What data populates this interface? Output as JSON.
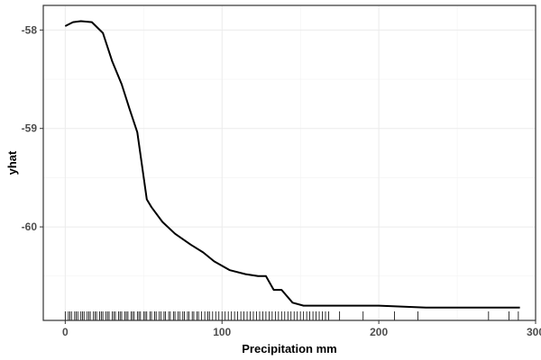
{
  "chart_data": {
    "type": "line",
    "xlabel": "Precipitation mm",
    "ylabel": "yhat",
    "xlim": [
      -14,
      300
    ],
    "ylim": [
      -60.95,
      -57.75
    ],
    "x_ticks": [
      0,
      100,
      200,
      300
    ],
    "x_tick_labels": [
      "0",
      "100",
      "200",
      "300"
    ],
    "y_ticks": [
      -58,
      -59,
      -60
    ],
    "y_tick_labels": [
      "-58",
      "-59",
      "-60"
    ],
    "x_minor_gridlines": [
      50,
      150,
      250
    ],
    "y_minor_gridlines": [
      -58.5,
      -59.5,
      -60.5
    ],
    "grid": true,
    "series": [
      {
        "x": [
          0,
          5,
          10,
          17,
          24,
          30,
          36,
          41,
          46,
          52,
          55,
          62,
          70,
          80,
          88,
          95,
          105,
          115,
          123,
          128,
          133,
          138,
          145,
          152,
          170,
          200,
          230,
          260,
          290
        ],
        "y": [
          -57.96,
          -57.92,
          -57.91,
          -57.92,
          -58.03,
          -58.32,
          -58.55,
          -58.8,
          -59.04,
          -59.72,
          -59.8,
          -59.95,
          -60.07,
          -60.18,
          -60.26,
          -60.35,
          -60.44,
          -60.48,
          -60.5,
          -60.5,
          -60.64,
          -60.64,
          -60.77,
          -60.8,
          -60.8,
          -60.8,
          -60.82,
          -60.82,
          -60.82
        ]
      }
    ],
    "rug": [
      0,
      2,
      3,
      4,
      6,
      7,
      8,
      10,
      11,
      12,
      14,
      15,
      16,
      18,
      19,
      20,
      22,
      23,
      24,
      26,
      27,
      28,
      30,
      31,
      32,
      34,
      35,
      36,
      38,
      39,
      40,
      42,
      43,
      44,
      46,
      47,
      48,
      50,
      51,
      52,
      54,
      55,
      57,
      58,
      60,
      61,
      63,
      64,
      66,
      67,
      69,
      70,
      72,
      73,
      75,
      76,
      78,
      79,
      81,
      82,
      84,
      85,
      87,
      89,
      91,
      92,
      94,
      96,
      98,
      100,
      102,
      104,
      106,
      108,
      110,
      112,
      114,
      116,
      118,
      120,
      122,
      124,
      126,
      128,
      130,
      132,
      134,
      136,
      138,
      140,
      142,
      144,
      146,
      148,
      150,
      152,
      154,
      156,
      158,
      160,
      162,
      164,
      166,
      168,
      175,
      190,
      210,
      225,
      270,
      283,
      289
    ]
  }
}
